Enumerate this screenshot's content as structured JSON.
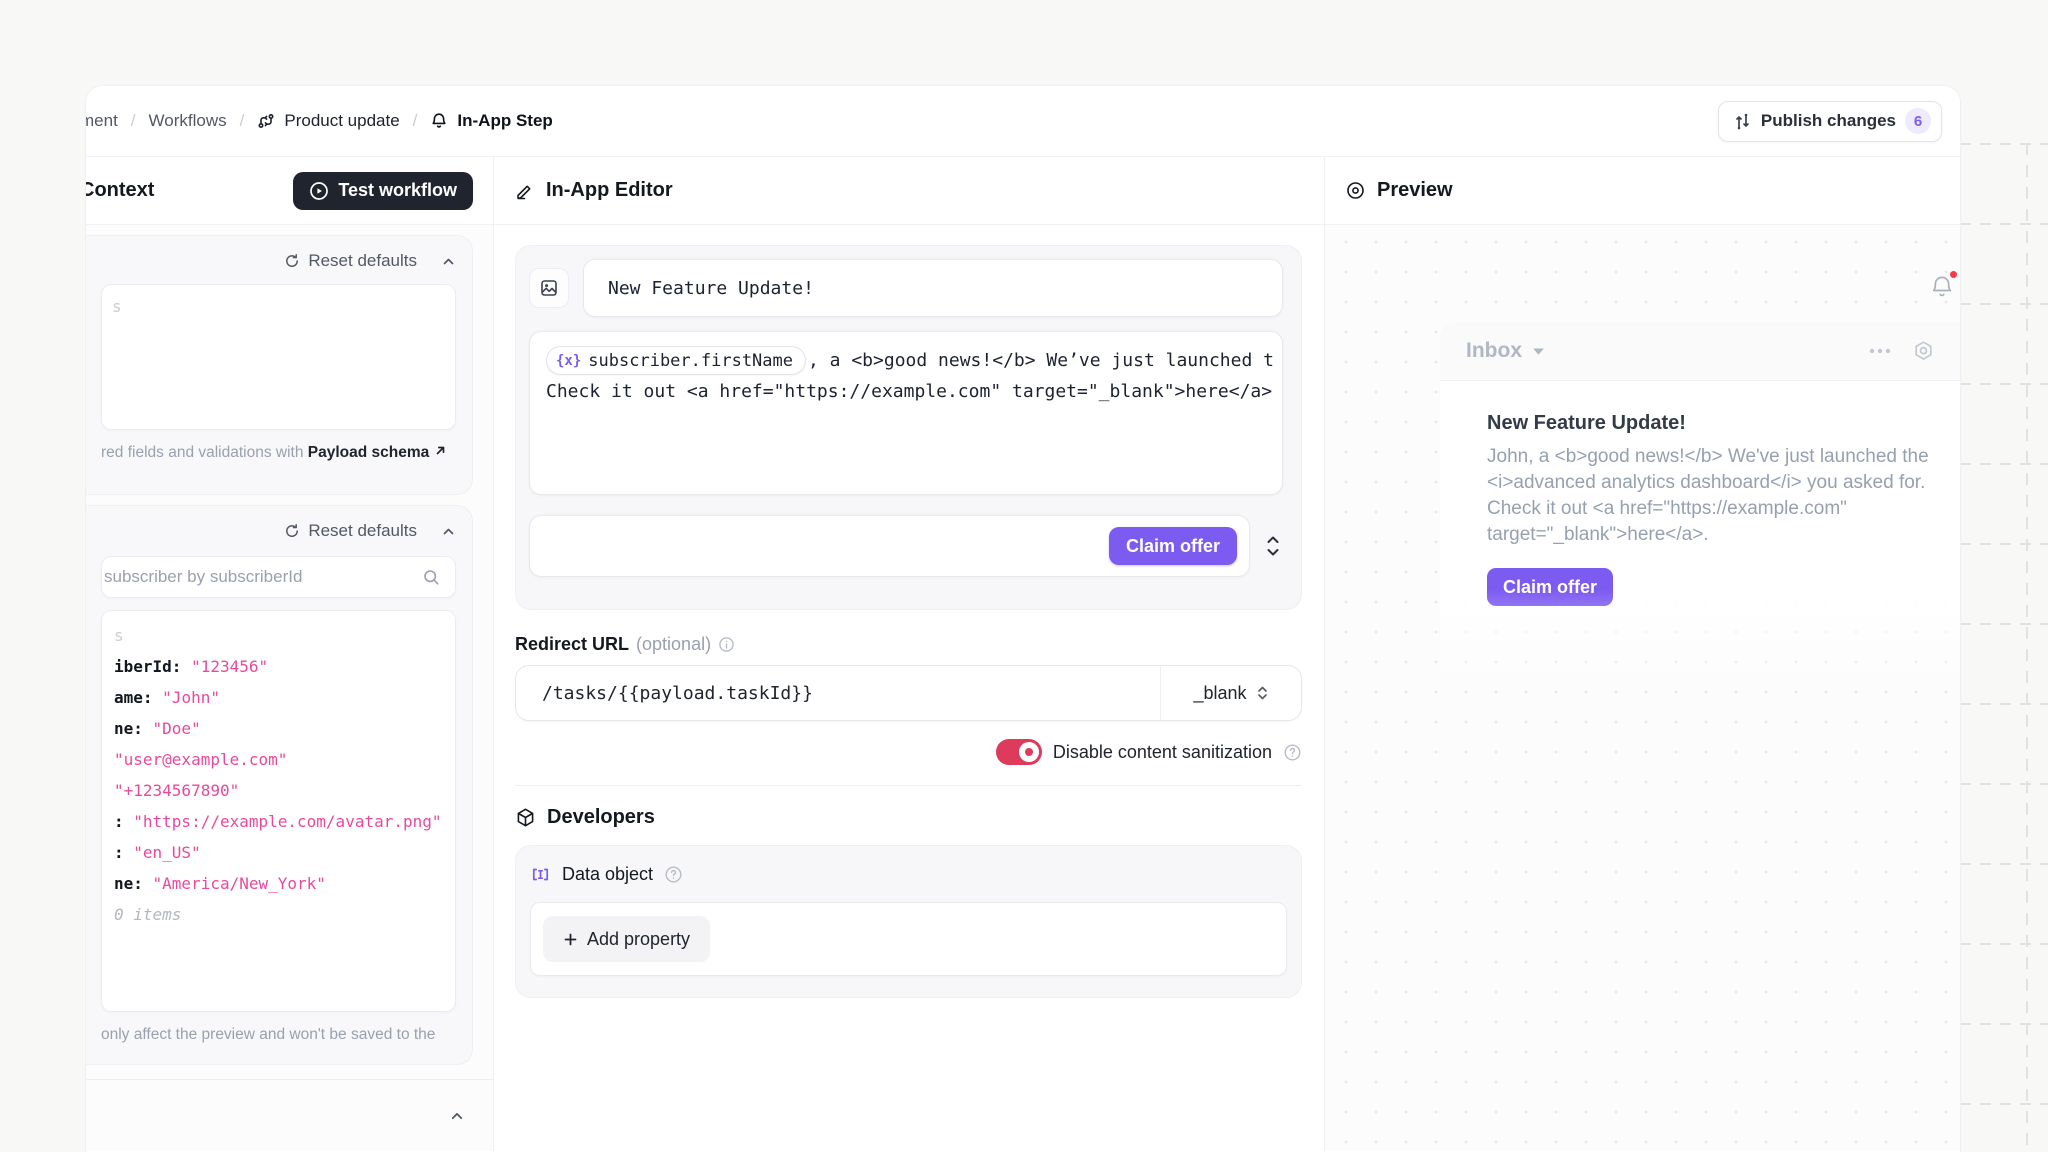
{
  "colors": {
    "purple": "#7C5BF1",
    "purple_light": "#EDEBFD",
    "toggle_red": "#DE3A5C",
    "json_pink": "#E8499C"
  },
  "topbar": {
    "breadcrumb": [
      "ment",
      "Workflows",
      "Product update",
      "In-App Step"
    ],
    "separator": "/",
    "publish_label": "Publish changes",
    "publish_count": "6"
  },
  "context": {
    "title": "Context",
    "test_button_label": "Test workflow",
    "payload": {
      "reset_label": "Reset defaults",
      "fragment": "s",
      "caption_text": "red fields and validations with",
      "caption_link": "Payload schema"
    },
    "subscriber": {
      "reset_label": "Reset defaults",
      "search_placeholder": "subscriber by subscriberId",
      "fragment": "s",
      "lines": [
        {
          "key": "iberId: ",
          "value": "\"123456\""
        },
        {
          "key": "ame: ",
          "value": "\"John\""
        },
        {
          "key": "ne: ",
          "value": "\"Doe\""
        },
        {
          "key": "",
          "value": "\"user@example.com\""
        },
        {
          "key": "",
          "value": "\"+1234567890\""
        },
        {
          "key": ": ",
          "value": "\"https://example.com/avatar.png\""
        },
        {
          "key": ": ",
          "value": "\"en_US\""
        },
        {
          "key": "ne: ",
          "value": "\"America/New_York\""
        }
      ],
      "items_note": "0 items",
      "caption": "only affect the preview and won't be saved to the"
    }
  },
  "editor": {
    "title": "In-App Editor",
    "subject_value": "New Feature Update!",
    "variable_glyph": "{x}",
    "variable_name": "subscriber.firstName",
    "body_line1": ", a <b>good news!</b> We’ve just launched t",
    "body_line2": "Check it out <a href=\"https://example.com\" target=\"_blank\">here</a>",
    "action_label": "Claim offer",
    "redirect_label": "Redirect URL",
    "redirect_optional": "(optional)",
    "redirect_value": "/tasks/{{payload.taskId}}",
    "redirect_target": "_blank",
    "sanitize_label": "Disable content sanitization",
    "developers_title": "Developers",
    "data_object_label": "Data object",
    "add_property_label": "Add property"
  },
  "preview": {
    "title": "Preview",
    "inbox_label": "Inbox",
    "notification": {
      "title": "New Feature Update!",
      "body": "John, a <b>good news!</b> We've just launched the <i>advanced analytics dashboard</i> you asked for. Check it out <a href=\"https://example.com\" target=\"_blank\">here</a>.",
      "action_label": "Claim offer"
    }
  }
}
